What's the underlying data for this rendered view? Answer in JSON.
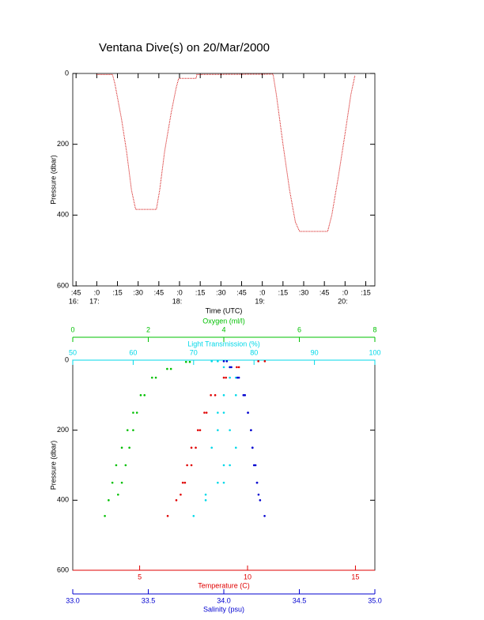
{
  "chart_data": [
    {
      "type": "line",
      "title": "Ventana Dive(s) on 20/Mar/2000",
      "x_label": "Time (UTC)",
      "y_label": "Pressure (dbar)",
      "color": "#d00000",
      "y_inverted": true,
      "xlim": [
        16.71,
        20.36
      ],
      "xticks": [
        {
          "value": 16.75,
          "label": ":45"
        },
        {
          "value": 17.0,
          "label": ":0"
        },
        {
          "value": 17.25,
          "label": ":15"
        },
        {
          "value": 17.5,
          "label": ":30"
        },
        {
          "value": 17.75,
          "label": ":45"
        },
        {
          "value": 18.0,
          "label": ":0"
        },
        {
          "value": 18.25,
          "label": ":15"
        },
        {
          "value": 18.5,
          "label": ":30"
        },
        {
          "value": 18.75,
          "label": ":45"
        },
        {
          "value": 19.0,
          "label": ":0"
        },
        {
          "value": 19.25,
          "label": ":15"
        },
        {
          "value": 19.5,
          "label": ":30"
        },
        {
          "value": 19.75,
          "label": ":45"
        },
        {
          "value": 20.0,
          "label": ":0"
        },
        {
          "value": 20.25,
          "label": ":15"
        }
      ],
      "xtick_hours": [
        {
          "value": 16.75,
          "label": "16:"
        },
        {
          "value": 17.0,
          "label": "17:"
        },
        {
          "value": 18.0,
          "label": "18:"
        },
        {
          "value": 19.0,
          "label": "19:"
        },
        {
          "value": 20.0,
          "label": "20:"
        }
      ],
      "ylim": [
        0,
        600
      ],
      "yticks": [
        0,
        200,
        400,
        600
      ],
      "x": [
        17.0,
        17.19,
        17.22,
        17.3,
        17.36,
        17.42,
        17.47,
        17.72,
        17.76,
        17.82,
        17.9,
        17.96,
        17.99,
        18.2,
        18.21,
        19.13,
        19.17,
        19.25,
        19.33,
        19.4,
        19.45,
        19.79,
        19.84,
        19.92,
        20.0,
        20.07,
        20.12
      ],
      "values": [
        3,
        3,
        30,
        130,
        220,
        330,
        384,
        384,
        330,
        220,
        110,
        40,
        14,
        14,
        3,
        2,
        60,
        200,
        330,
        420,
        446,
        446,
        400,
        290,
        170,
        60,
        5
      ]
    },
    {
      "type": "scatter",
      "y_label": "Pressure (dbar)",
      "y_inverted": true,
      "ylim": [
        0,
        600
      ],
      "yticks": [
        0,
        200,
        400,
        600
      ],
      "x_axes": [
        {
          "label": "Oxygen (ml/l)",
          "color": "#00c000",
          "position": "top",
          "lim": [
            0,
            8
          ],
          "ticks": [
            0,
            2,
            4,
            6,
            8
          ]
        },
        {
          "label": "Light Transmission (%)",
          "color": "#00d8e8",
          "position": "top",
          "lim": [
            50,
            100
          ],
          "ticks": [
            50,
            60,
            70,
            80,
            90,
            100
          ]
        },
        {
          "label": "Temperature (C)",
          "color": "#e00000",
          "position": "bottom",
          "lim": [
            1.9,
            15.9
          ],
          "ticks": [
            5,
            10,
            15
          ]
        },
        {
          "label": "Salinity (psu)",
          "color": "#0000d0",
          "position": "bottom",
          "lim": [
            33,
            35
          ],
          "ticks": [
            {
              "value": 33,
              "label": "33.0"
            },
            {
              "value": 33.5,
              "label": "33.5"
            },
            {
              "value": 34,
              "label": "34.0"
            },
            {
              "value": 34.5,
              "label": "34.5"
            },
            {
              "value": 35,
              "label": "35.0"
            }
          ]
        }
      ],
      "series": [
        {
          "axis": 0,
          "color": "#00c000",
          "x": [
            3.0,
            2.6,
            2.2,
            1.9,
            1.7,
            1.6,
            1.5,
            1.4,
            1.3,
            1.2,
            3.1,
            2.5,
            2.1,
            1.8,
            1.6,
            1.45,
            1.3,
            1.15,
            1.05,
            0.95,
            0.85
          ],
          "y": [
            5,
            25,
            50,
            100,
            150,
            200,
            250,
            300,
            350,
            384,
            5,
            25,
            50,
            100,
            150,
            200,
            250,
            300,
            350,
            400,
            445
          ]
        },
        {
          "axis": 1,
          "color": "#00d8e8",
          "x": [
            74,
            76,
            77,
            75,
            74,
            76,
            77,
            75,
            74,
            72,
            73,
            75,
            76,
            77,
            75,
            74,
            73,
            76,
            75,
            72,
            70
          ],
          "y": [
            3,
            20,
            50,
            100,
            150,
            200,
            250,
            300,
            350,
            384,
            3,
            20,
            50,
            100,
            150,
            200,
            250,
            300,
            350,
            400,
            445
          ]
        },
        {
          "axis": 2,
          "color": "#e00000",
          "x": [
            10.5,
            9.5,
            9.0,
            8.5,
            8.1,
            7.8,
            7.6,
            7.4,
            7.1,
            6.9,
            10.8,
            9.6,
            8.9,
            8.3,
            8.0,
            7.7,
            7.4,
            7.2,
            7.0,
            6.7,
            6.3
          ],
          "y": [
            3,
            20,
            50,
            100,
            150,
            200,
            250,
            300,
            350,
            384,
            3,
            20,
            50,
            100,
            150,
            200,
            250,
            300,
            350,
            400,
            445
          ]
        },
        {
          "axis": 3,
          "color": "#0000d0",
          "x": [
            34.02,
            34.05,
            34.1,
            34.14,
            34.16,
            34.18,
            34.19,
            34.2,
            34.22,
            34.23,
            34.0,
            34.04,
            34.09,
            34.13,
            34.16,
            34.18,
            34.19,
            34.21,
            34.22,
            34.24,
            34.27
          ],
          "y": [
            3,
            20,
            50,
            100,
            150,
            200,
            250,
            300,
            350,
            384,
            3,
            20,
            50,
            100,
            150,
            200,
            250,
            300,
            350,
            400,
            445
          ]
        }
      ]
    }
  ]
}
